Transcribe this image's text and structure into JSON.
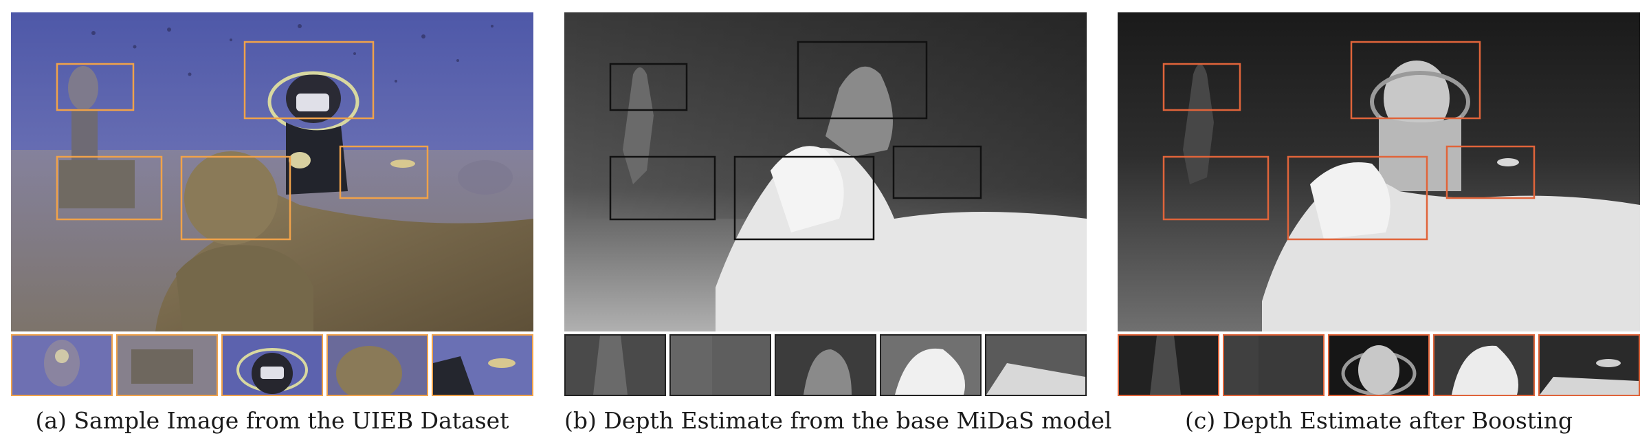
{
  "figure": {
    "panels": [
      {
        "id": "a",
        "caption": "(a) Sample Image from the UIEB Dataset",
        "type": "underwater photograph",
        "region_box_color": "#f0a24a",
        "crop_count": 5
      },
      {
        "id": "b",
        "caption": "(b) Depth Estimate from the base MiDaS model",
        "type": "grayscale depth map",
        "region_box_color": "#111111",
        "crop_count": 5
      },
      {
        "id": "c",
        "caption": "(c) Depth Estimate after Boosting",
        "type": "grayscale depth map",
        "region_box_color": "#e0643a",
        "crop_count": 5
      }
    ]
  }
}
